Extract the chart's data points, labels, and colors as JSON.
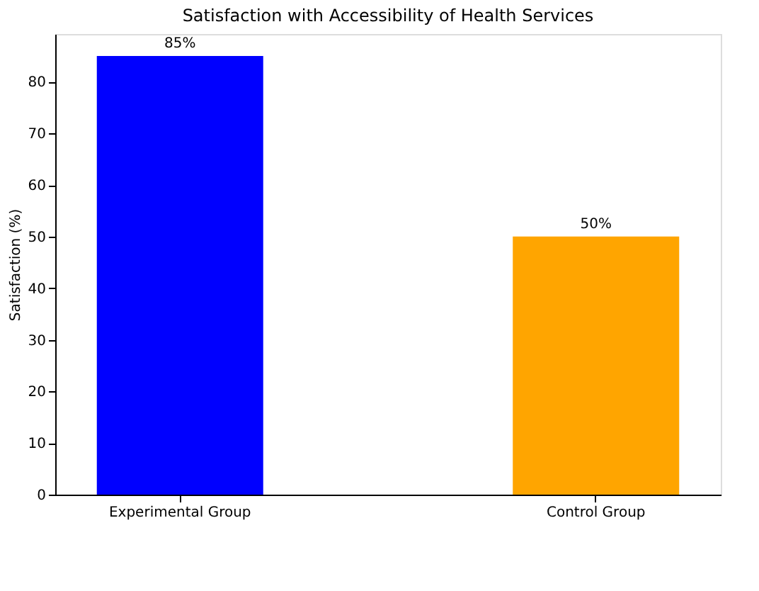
{
  "chart_data": {
    "type": "bar",
    "title": "Satisfaction with Accessibility of Health Services",
    "ylabel": "Satisfaction (%)",
    "categories": [
      "Experimental Group",
      "Control Group"
    ],
    "values": [
      85,
      50
    ],
    "colors": [
      "#0000ff",
      "#ffa500"
    ],
    "value_labels": [
      "85%",
      "50%"
    ],
    "ylim": [
      0,
      89.25
    ],
    "yticks": [
      0,
      10,
      20,
      30,
      40,
      50,
      60,
      70,
      80
    ],
    "grid": false
  }
}
